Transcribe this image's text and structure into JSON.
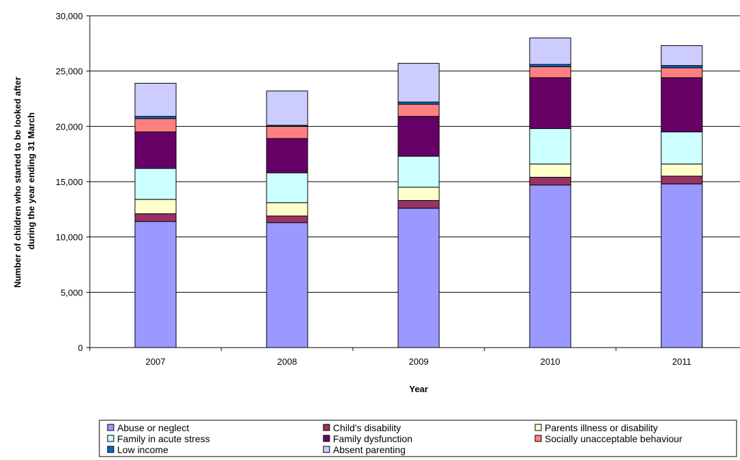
{
  "chart_data": {
    "type": "bar",
    "stacked": true,
    "xlabel": "Year",
    "ylabel": "Number of children who started to be looked after during the year ending 31 March",
    "ylabel_lines": [
      "Number of children who started to be looked after",
      "during the year ending 31 March"
    ],
    "ylim": [
      0,
      30000
    ],
    "yticks": [
      0,
      5000,
      10000,
      15000,
      20000,
      25000,
      30000
    ],
    "ytick_labels": [
      "0",
      "5,000",
      "10,000",
      "15,000",
      "20,000",
      "25,000",
      "30,000"
    ],
    "grid": true,
    "legend_position": "bottom",
    "categories": [
      "2007",
      "2008",
      "2009",
      "2010",
      "2011"
    ],
    "series": [
      {
        "name": "Abuse or neglect",
        "color": "#9999ff",
        "values": [
          11400,
          11300,
          12600,
          14700,
          14800
        ]
      },
      {
        "name": "Child's disability",
        "color": "#993366",
        "values": [
          700,
          600,
          700,
          700,
          700
        ]
      },
      {
        "name": "Parents illness or disability",
        "color": "#ffffcc",
        "values": [
          1300,
          1200,
          1200,
          1200,
          1100
        ]
      },
      {
        "name": "Family in acute stress",
        "color": "#ccffff",
        "values": [
          2800,
          2700,
          2800,
          3200,
          2900
        ]
      },
      {
        "name": "Family dysfunction",
        "color": "#660066",
        "values": [
          3300,
          3100,
          3600,
          4600,
          4900
        ]
      },
      {
        "name": "Socially unacceptable behaviour",
        "color": "#ff8080",
        "values": [
          1200,
          1100,
          1100,
          1000,
          900
        ]
      },
      {
        "name": "Low income",
        "color": "#0066cc",
        "values": [
          200,
          100,
          200,
          200,
          200
        ]
      },
      {
        "name": "Absent parenting",
        "color": "#ccccff",
        "values": [
          3000,
          3100,
          3500,
          2400,
          1800
        ]
      }
    ]
  },
  "colors": {
    "grid": "#000000",
    "plot_border": "#000000"
  }
}
